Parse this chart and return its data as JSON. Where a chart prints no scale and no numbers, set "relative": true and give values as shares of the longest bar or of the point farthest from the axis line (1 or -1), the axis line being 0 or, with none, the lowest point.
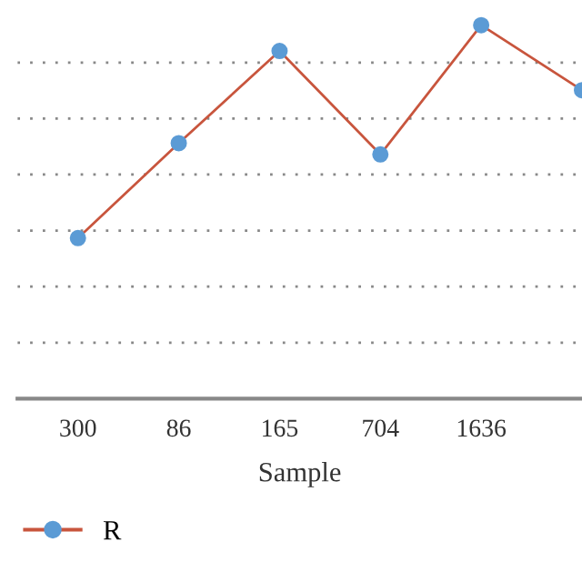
{
  "chart_data": {
    "type": "line",
    "xlabel": "Sample",
    "relative": true,
    "categories": [
      "300",
      "86",
      "165",
      "704",
      "1636",
      null
    ],
    "series": [
      {
        "name": "R",
        "color": "#c8553d",
        "colors": [
          "#5b9bd5",
          "#5b9bd5",
          "#5b9bd5",
          "#5b9bd5",
          "#5b9bd5",
          "#5b9bd5"
        ],
        "values": [
          0.43,
          0.684,
          0.931,
          0.654,
          1.0,
          0.826
        ]
      }
    ],
    "marker": "circle",
    "line_style": "solid",
    "grid": "y",
    "legend": "bottom left"
  }
}
